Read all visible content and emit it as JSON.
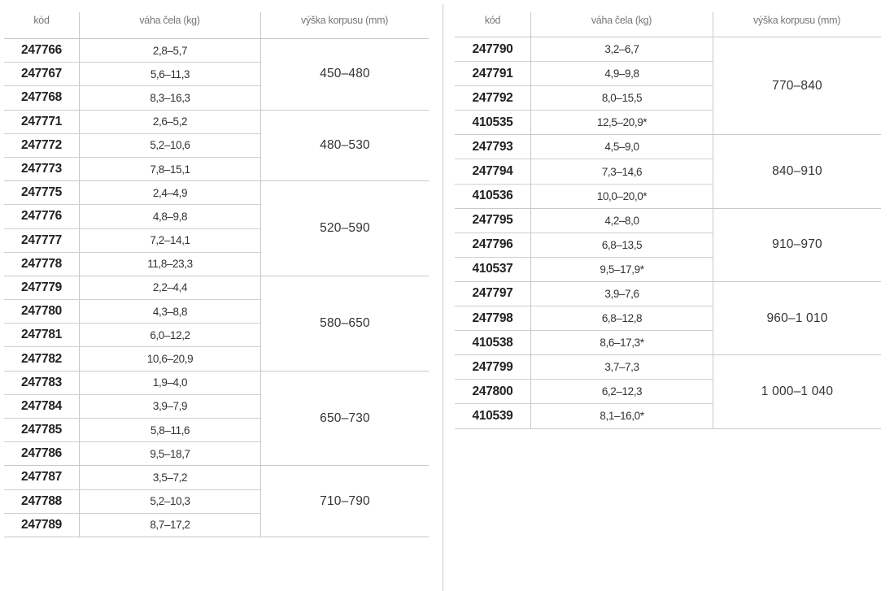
{
  "headers": {
    "code": "kód",
    "weight": "váha čela (kg)",
    "height": "výška korpusu (mm)"
  },
  "left": {
    "groups": [
      {
        "height": "450–480",
        "rows": [
          {
            "code": "247766",
            "weight": "2,8–5,7"
          },
          {
            "code": "247767",
            "weight": "5,6–11,3"
          },
          {
            "code": "247768",
            "weight": "8,3–16,3"
          }
        ]
      },
      {
        "height": "480–530",
        "rows": [
          {
            "code": "247771",
            "weight": "2,6–5,2"
          },
          {
            "code": "247772",
            "weight": "5,2–10,6"
          },
          {
            "code": "247773",
            "weight": "7,8–15,1"
          }
        ]
      },
      {
        "height": "520–590",
        "rows": [
          {
            "code": "247775",
            "weight": "2,4–4,9"
          },
          {
            "code": "247776",
            "weight": "4,8–9,8"
          },
          {
            "code": "247777",
            "weight": "7,2–14,1"
          },
          {
            "code": "247778",
            "weight": "11,8–23,3"
          }
        ]
      },
      {
        "height": "580–650",
        "rows": [
          {
            "code": "247779",
            "weight": "2,2–4,4"
          },
          {
            "code": "247780",
            "weight": "4,3–8,8"
          },
          {
            "code": "247781",
            "weight": "6,0–12,2"
          },
          {
            "code": "247782",
            "weight": "10,6–20,9"
          }
        ]
      },
      {
        "height": "650–730",
        "rows": [
          {
            "code": "247783",
            "weight": "1,9–4,0"
          },
          {
            "code": "247784",
            "weight": "3,9–7,9"
          },
          {
            "code": "247785",
            "weight": "5,8–11,6"
          },
          {
            "code": "247786",
            "weight": "9,5–18,7"
          }
        ]
      },
      {
        "height": "710–790",
        "rows": [
          {
            "code": "247787",
            "weight": "3,5–7,2"
          },
          {
            "code": "247788",
            "weight": "5,2–10,3"
          },
          {
            "code": "247789",
            "weight": "8,7–17,2"
          }
        ]
      }
    ]
  },
  "right": {
    "groups": [
      {
        "height": "770–840",
        "rows": [
          {
            "code": "247790",
            "weight": "3,2–6,7"
          },
          {
            "code": "247791",
            "weight": "4,9–9,8"
          },
          {
            "code": "247792",
            "weight": "8,0–15,5"
          },
          {
            "code": "410535",
            "weight": "12,5–20,9*"
          }
        ]
      },
      {
        "height": "840–910",
        "rows": [
          {
            "code": "247793",
            "weight": "4,5–9,0"
          },
          {
            "code": "247794",
            "weight": "7,3–14,6"
          },
          {
            "code": "410536",
            "weight": "10,0–20,0*"
          }
        ]
      },
      {
        "height": "910–970",
        "rows": [
          {
            "code": "247795",
            "weight": "4,2–8,0"
          },
          {
            "code": "247796",
            "weight": "6,8–13,5"
          },
          {
            "code": "410537",
            "weight": "9,5–17,9*"
          }
        ]
      },
      {
        "height": "960–1 010",
        "rows": [
          {
            "code": "247797",
            "weight": "3,9–7,6"
          },
          {
            "code": "247798",
            "weight": "6,8–12,8"
          },
          {
            "code": "410538",
            "weight": "8,6–17,3*"
          }
        ]
      },
      {
        "height": "1 000–1 040",
        "rows": [
          {
            "code": "247799",
            "weight": "3,7–7,3"
          },
          {
            "code": "247800",
            "weight": "6,2–12,3"
          },
          {
            "code": "410539",
            "weight": "8,1–16,0*"
          }
        ]
      }
    ]
  }
}
